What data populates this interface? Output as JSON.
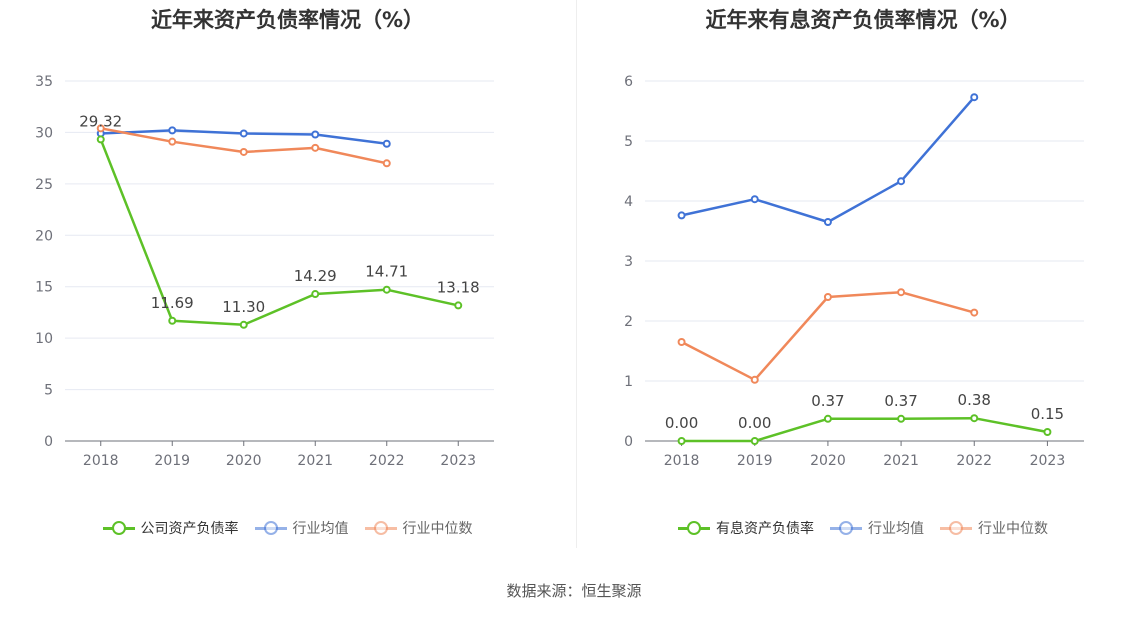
{
  "source_text": "数据来源：恒生聚源",
  "charts": [
    {
      "id": "left",
      "title": "近年来资产负债率情况（%）",
      "chart_data": {
        "type": "line",
        "title": "近年来资产负债率情况（%）",
        "categories": [
          "2018",
          "2019",
          "2020",
          "2021",
          "2022",
          "2023"
        ],
        "ylim": [
          0,
          35
        ],
        "yticks": [
          "0",
          "5",
          "10",
          "15",
          "20",
          "25",
          "30",
          "35"
        ],
        "grid": true,
        "legend_position": "bottom",
        "series": [
          {
            "name": "公司资产负债率",
            "color": "#5dc127",
            "values": [
              29.32,
              11.69,
              11.3,
              14.29,
              14.71,
              13.18
            ],
            "labels": [
              "29.32",
              "11.69",
              "11.30",
              "14.29",
              "14.71",
              "13.18"
            ]
          },
          {
            "name": "行业均值",
            "color": "#3f72d6",
            "values": [
              29.9,
              30.2,
              29.9,
              29.8,
              28.9,
              null
            ]
          },
          {
            "name": "行业中位数",
            "color": "#f0885a",
            "values": [
              30.4,
              29.1,
              28.1,
              28.5,
              27.0,
              null
            ]
          }
        ]
      }
    },
    {
      "id": "right",
      "title": "近年来有息资产负债率情况（%）",
      "chart_data": {
        "type": "line",
        "title": "近年来有息资产负债率情况（%）",
        "categories": [
          "2018",
          "2019",
          "2020",
          "2021",
          "2022",
          "2023"
        ],
        "ylim": [
          0,
          6
        ],
        "yticks": [
          "0",
          "1",
          "2",
          "3",
          "4",
          "5",
          "6"
        ],
        "grid": true,
        "legend_position": "bottom",
        "series": [
          {
            "name": "有息资产负债率",
            "color": "#5dc127",
            "values": [
              0.0,
              0.0,
              0.37,
              0.37,
              0.38,
              0.15
            ],
            "labels": [
              "0.00",
              "0.00",
              "0.37",
              "0.37",
              "0.38",
              "0.15"
            ]
          },
          {
            "name": "行业均值",
            "color": "#3f72d6",
            "values": [
              3.76,
              4.03,
              3.65,
              4.33,
              5.73,
              null
            ]
          },
          {
            "name": "行业中位数",
            "color": "#f0885a",
            "values": [
              1.65,
              1.02,
              2.4,
              2.48,
              2.14,
              null
            ]
          }
        ]
      }
    }
  ]
}
